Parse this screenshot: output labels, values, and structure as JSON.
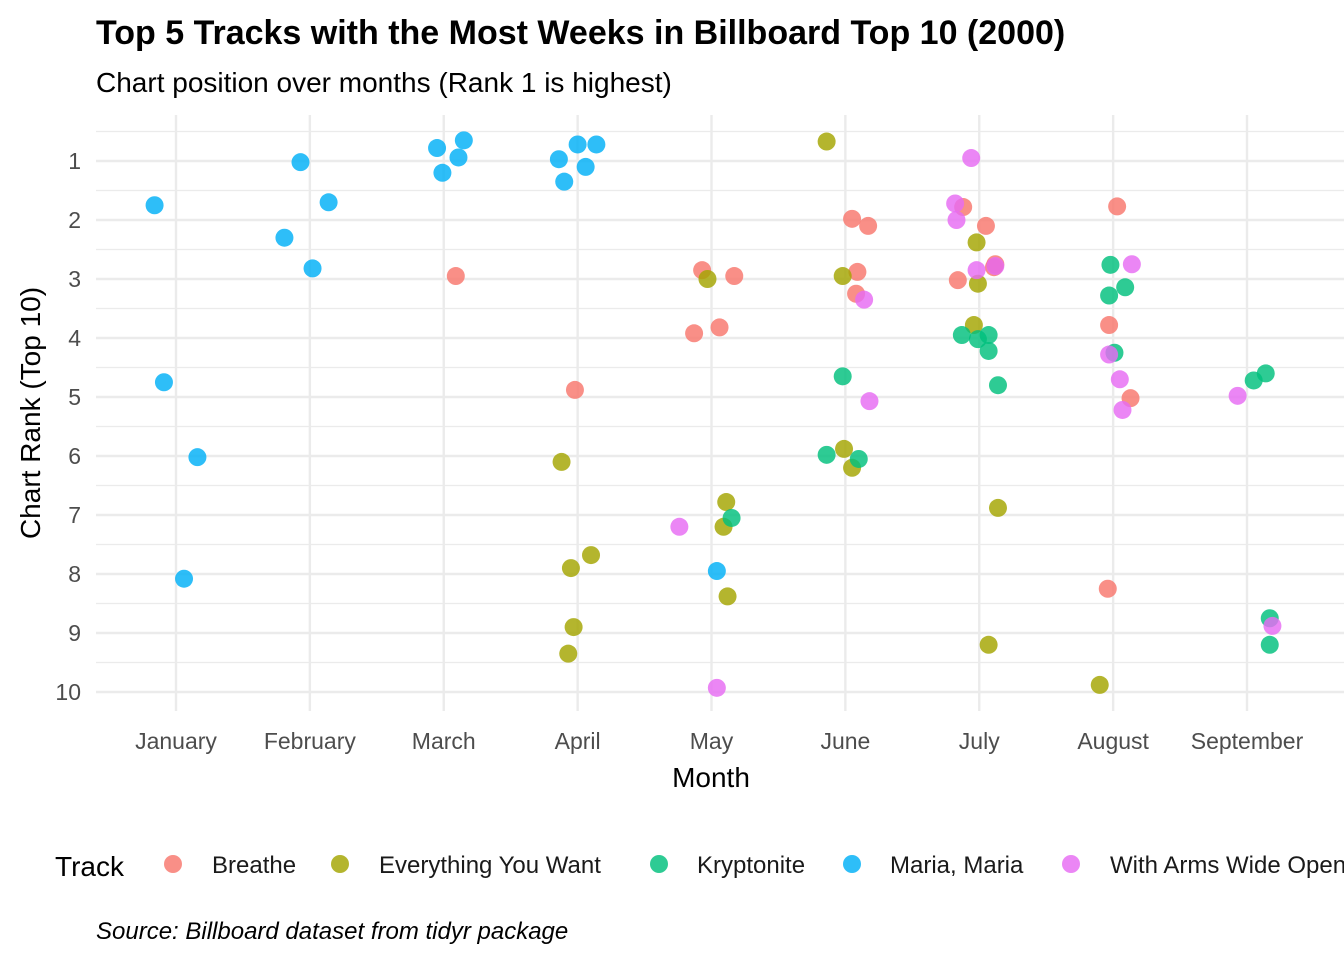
{
  "chart_data": {
    "type": "scatter",
    "title": "Top 5 Tracks with the Most Weeks in Billboard Top 10 (2000)",
    "subtitle": "Chart position over months (Rank 1 is highest)",
    "xlabel": "Month",
    "ylabel": "Chart Rank (Top 10)",
    "caption": "Source: Billboard dataset from tidyr package",
    "categories": [
      "January",
      "February",
      "March",
      "April",
      "May",
      "June",
      "July",
      "August",
      "September"
    ],
    "y_ticks": [
      "1",
      "2",
      "3",
      "4",
      "5",
      "6",
      "7",
      "8",
      "9",
      "10"
    ],
    "ylim": [
      10.25,
      0.5
    ],
    "y_reversed": true,
    "grid": true,
    "legend": {
      "title": "Track",
      "position": "bottom"
    },
    "series": [
      {
        "name": "Breathe",
        "color": "#F8766D",
        "points": [
          [
            3.09,
            2.95
          ],
          [
            3.98,
            4.88
          ],
          [
            4.93,
            2.85
          ],
          [
            4.87,
            3.92
          ],
          [
            5.06,
            3.82
          ],
          [
            5.17,
            2.95
          ],
          [
            6.05,
            1.98
          ],
          [
            6.17,
            2.1
          ],
          [
            6.09,
            2.88
          ],
          [
            6.08,
            3.25
          ],
          [
            6.84,
            3.02
          ],
          [
            6.88,
            1.78
          ],
          [
            7.05,
            2.1
          ],
          [
            7.11,
            2.8
          ],
          [
            7.12,
            2.75
          ],
          [
            7.96,
            8.25
          ],
          [
            8.03,
            1.77
          ],
          [
            7.97,
            3.78
          ],
          [
            8.13,
            5.02
          ]
        ]
      },
      {
        "name": "Everything You Want",
        "color": "#A3A500",
        "points": [
          [
            3.88,
            6.1
          ],
          [
            3.95,
            7.9
          ],
          [
            4.1,
            7.68
          ],
          [
            3.97,
            8.9
          ],
          [
            3.93,
            9.35
          ],
          [
            4.97,
            3.0
          ],
          [
            5.11,
            6.78
          ],
          [
            5.09,
            7.2
          ],
          [
            5.12,
            8.38
          ],
          [
            5.86,
            0.67
          ],
          [
            5.98,
            2.95
          ],
          [
            5.99,
            5.88
          ],
          [
            6.05,
            6.2
          ],
          [
            6.98,
            2.38
          ],
          [
            6.96,
            3.78
          ],
          [
            6.99,
            3.08
          ],
          [
            7.14,
            6.88
          ],
          [
            7.07,
            9.2
          ],
          [
            7.9,
            9.88
          ]
        ]
      },
      {
        "name": "Kryptonite",
        "color": "#00BF7D",
        "points": [
          [
            5.15,
            7.05
          ],
          [
            5.98,
            4.65
          ],
          [
            5.86,
            5.98
          ],
          [
            6.1,
            6.05
          ],
          [
            6.87,
            3.95
          ],
          [
            6.99,
            4.02
          ],
          [
            7.07,
            3.95
          ],
          [
            7.07,
            4.22
          ],
          [
            7.14,
            4.8
          ],
          [
            7.98,
            2.76
          ],
          [
            7.97,
            3.28
          ],
          [
            8.01,
            4.25
          ],
          [
            8.09,
            3.14
          ],
          [
            9.05,
            4.72
          ],
          [
            9.14,
            4.6
          ],
          [
            9.17,
            8.75
          ],
          [
            9.17,
            9.2
          ]
        ]
      },
      {
        "name": "Maria, Maria",
        "color": "#00B0F6",
        "points": [
          [
            0.84,
            1.75
          ],
          [
            0.91,
            4.75
          ],
          [
            1.16,
            6.02
          ],
          [
            1.06,
            8.08
          ],
          [
            1.93,
            1.02
          ],
          [
            1.81,
            2.3
          ],
          [
            2.02,
            2.82
          ],
          [
            2.14,
            1.7
          ],
          [
            2.95,
            0.78
          ],
          [
            2.99,
            1.2
          ],
          [
            3.11,
            0.94
          ],
          [
            3.15,
            0.65
          ],
          [
            3.86,
            0.97
          ],
          [
            3.9,
            1.35
          ],
          [
            4.0,
            0.72
          ],
          [
            4.06,
            1.1
          ],
          [
            4.14,
            0.72
          ],
          [
            5.04,
            7.95
          ]
        ]
      },
      {
        "name": "With Arms Wide Open",
        "color": "#E76BF3",
        "points": [
          [
            4.76,
            7.2
          ],
          [
            5.04,
            9.93
          ],
          [
            6.14,
            3.35
          ],
          [
            6.18,
            5.07
          ],
          [
            6.82,
            1.72
          ],
          [
            6.83,
            2.0
          ],
          [
            6.94,
            0.95
          ],
          [
            6.98,
            2.85
          ],
          [
            7.12,
            2.78
          ],
          [
            7.97,
            4.28
          ],
          [
            8.05,
            4.7
          ],
          [
            8.07,
            5.22
          ],
          [
            8.14,
            2.75
          ],
          [
            8.93,
            4.98
          ],
          [
            9.19,
            8.88
          ]
        ]
      }
    ]
  }
}
